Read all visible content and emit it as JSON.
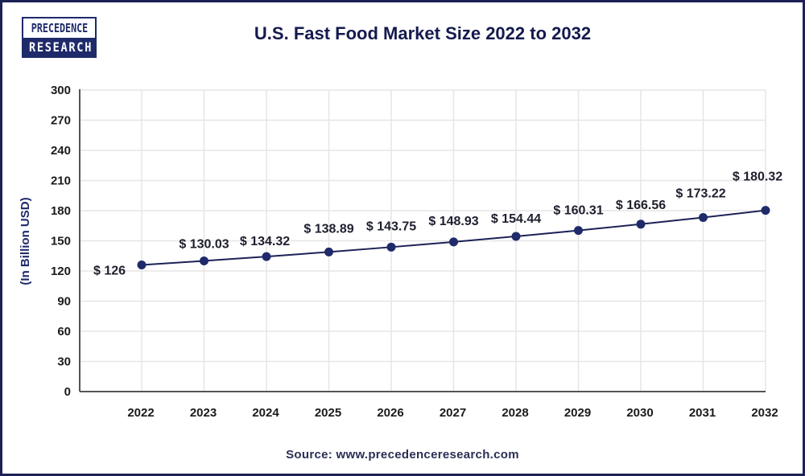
{
  "brand": {
    "logo_top": "PRECEDENCE",
    "logo_bottom": "RESEARCH"
  },
  "source": "Source: www.precedenceresearch.com",
  "colors": {
    "line": "#1c2256",
    "marker": "#1f2a6b",
    "frame": "#1c2256",
    "grid": "#e6e6e6",
    "axis": "#555555"
  },
  "chart_data": {
    "type": "line",
    "title": "U.S. Fast Food Market Size 2022 to 2032",
    "xlabel": "",
    "ylabel": "(In Billion USD)",
    "categories": [
      "2022",
      "2023",
      "2024",
      "2025",
      "2026",
      "2027",
      "2028",
      "2029",
      "2030",
      "2031",
      "2032"
    ],
    "series": [
      {
        "name": "U.S. Fast Food Market Size",
        "values": [
          126,
          130.03,
          134.32,
          138.89,
          143.75,
          148.93,
          154.44,
          160.31,
          166.56,
          173.22,
          180.32
        ],
        "data_labels": [
          "$ 126",
          "$ 130.03",
          "$ 134.32",
          "$ 138.89",
          "$ 143.75",
          "$ 148.93",
          "$ 154.44",
          "$ 160.31",
          "$ 166.56",
          "$ 173.22",
          "$ 180.32"
        ]
      }
    ],
    "ylim": [
      0,
      300
    ],
    "yticks": [
      0,
      30,
      60,
      90,
      120,
      150,
      180,
      210,
      240,
      270,
      300
    ],
    "grid": true,
    "legend": "none"
  }
}
